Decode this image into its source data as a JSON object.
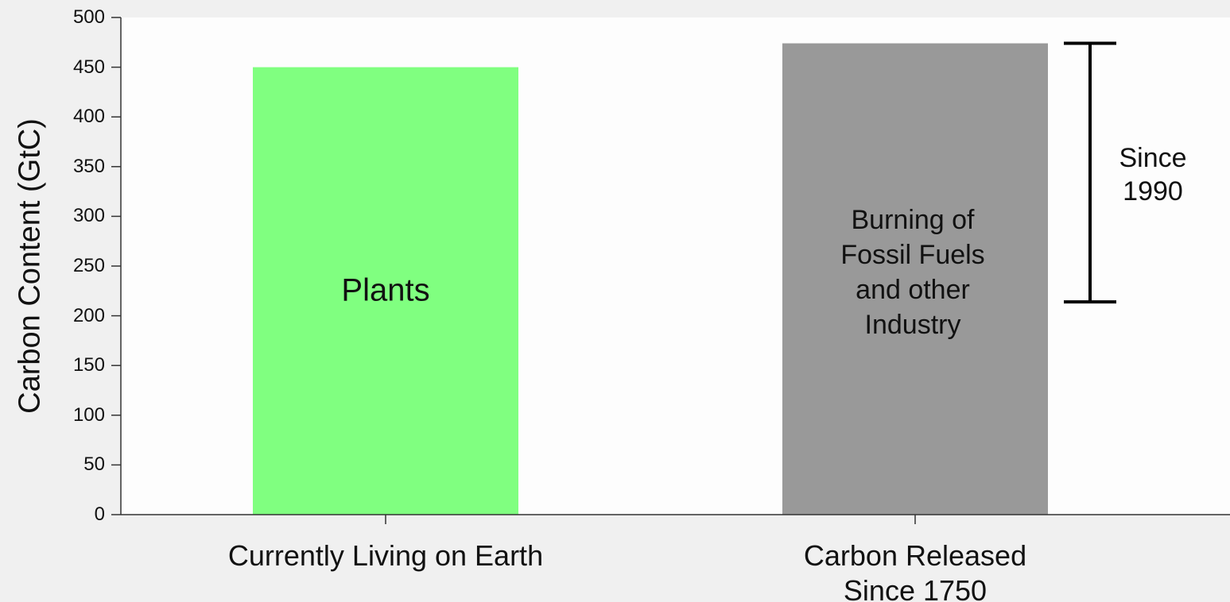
{
  "chart_data": {
    "type": "bar",
    "ylabel": "Carbon Content (GtC)",
    "categories": [
      "Currently Living on Earth",
      "Carbon Released Since 1750"
    ],
    "values": [
      450,
      474
    ],
    "colors": [
      "#80ff80",
      "#999999"
    ],
    "bar_labels": [
      "Plants",
      "Burning of Fossil Fuels and other Industry"
    ],
    "ylim": [
      0,
      500
    ],
    "yticks": [
      0,
      50,
      100,
      150,
      200,
      250,
      300,
      350,
      400,
      450,
      500
    ],
    "annotations": [
      {
        "text": "Since 1990",
        "range": [
          214,
          474
        ]
      }
    ]
  }
}
